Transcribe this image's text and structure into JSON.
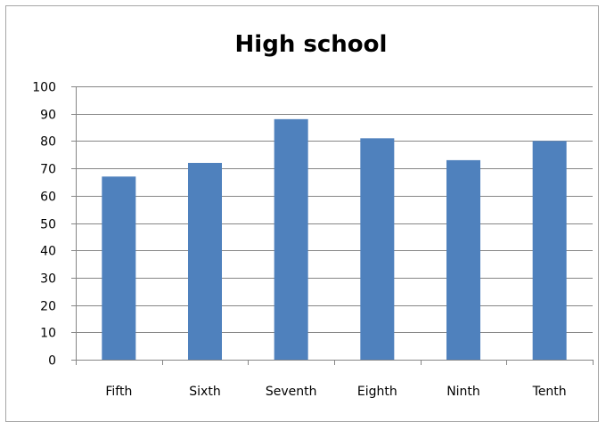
{
  "chart_data": {
    "type": "bar",
    "title": "High school",
    "categories": [
      "Fifth",
      "Sixth",
      "Seventh",
      "Eighth",
      "Ninth",
      "Tenth"
    ],
    "values": [
      67,
      72,
      88,
      81,
      73,
      80
    ],
    "xlabel": "",
    "ylabel": "",
    "ylim": [
      0,
      100
    ],
    "yticks": [
      0,
      10,
      20,
      30,
      40,
      50,
      60,
      70,
      80,
      90,
      100
    ],
    "grid": true,
    "legend": "none",
    "colors": {
      "bar": "#4f81bd",
      "grid": "#868686",
      "axis": "#868686",
      "text": "#000000"
    }
  }
}
